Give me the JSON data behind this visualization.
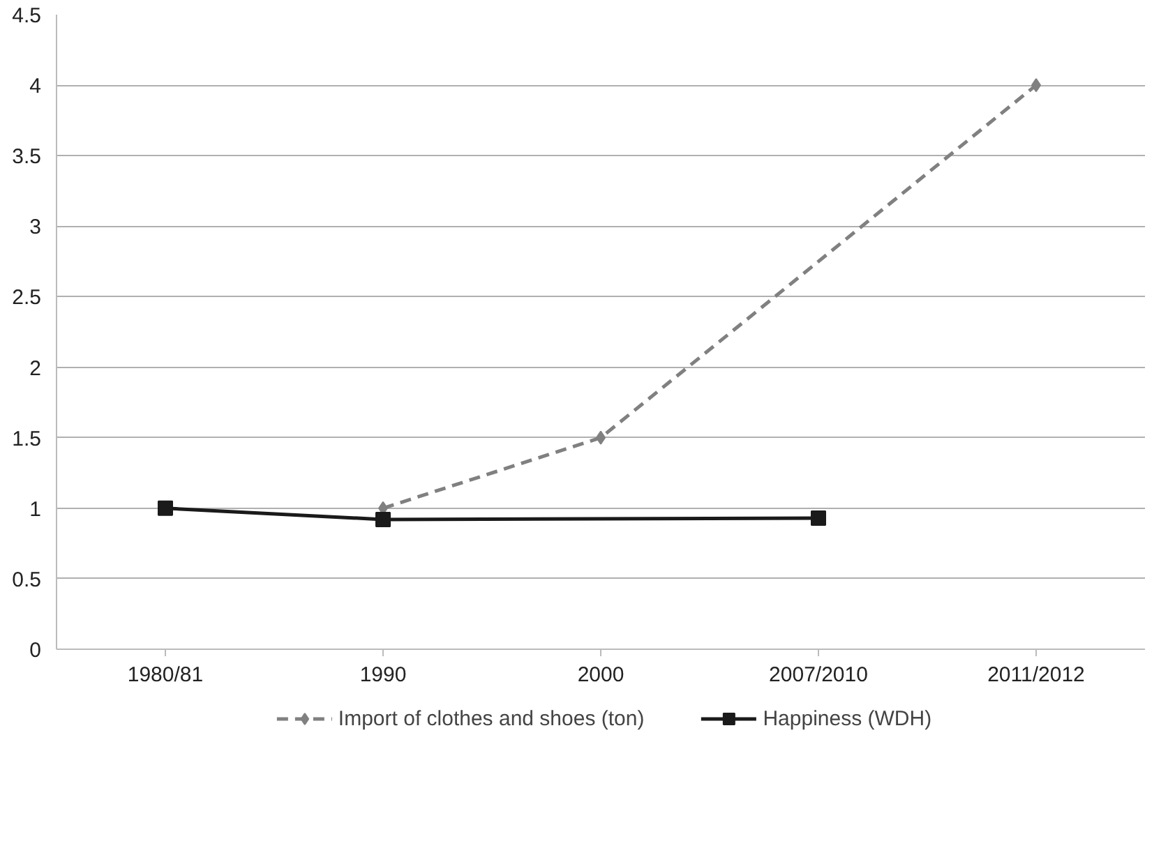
{
  "chart_data": {
    "type": "line",
    "categories": [
      "1980/81",
      "1990",
      "2000",
      "2007/2010",
      "2011/2012"
    ],
    "series": [
      {
        "name": "Import of clothes and shoes (ton)",
        "color": "#808080",
        "marker": "diamond",
        "line_style": "dashed",
        "values": [
          null,
          1,
          1.5,
          null,
          4
        ]
      },
      {
        "name": "Happiness (WDH)",
        "color": "#1a1a1a",
        "marker": "square",
        "line_style": "solid",
        "values": [
          1,
          0.92,
          null,
          0.93,
          null
        ]
      }
    ],
    "ylim": [
      0,
      4.5
    ],
    "yticks": [
      0,
      0.5,
      1,
      1.5,
      2,
      2.5,
      3,
      3.5,
      4,
      4.5
    ],
    "grid": "y",
    "legend": "bottom"
  }
}
